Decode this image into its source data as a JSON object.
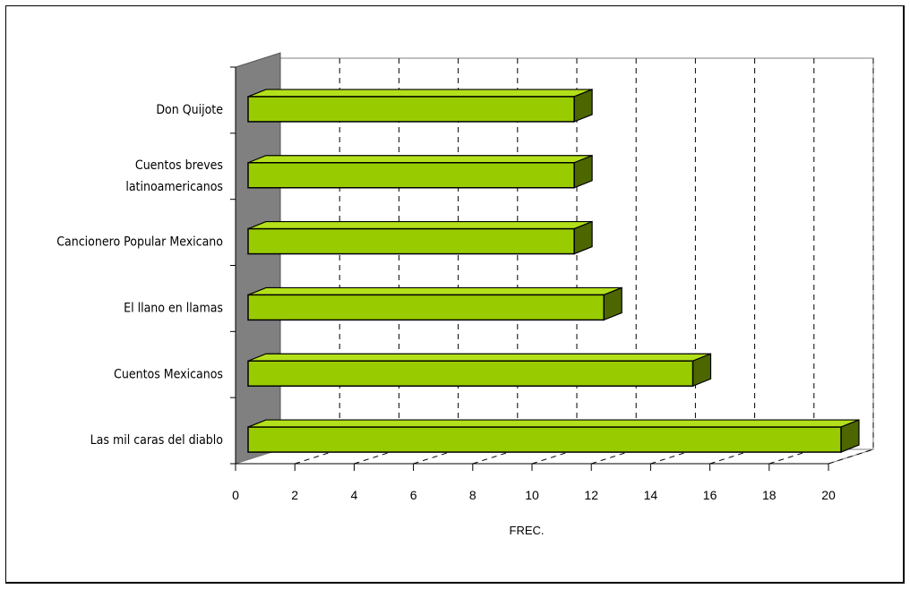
{
  "chart_data": {
    "type": "bar",
    "orientation": "horizontal",
    "style": "3d",
    "categories": [
      "Don Quijote",
      "Cuentos breves latinoamericanos",
      "Cancionero Popular Mexicano",
      "El llano en llamas",
      "Cuentos Mexicanos",
      "Las mil caras del diablo"
    ],
    "category_lines": [
      [
        "Don Quijote"
      ],
      [
        "Cuentos breves",
        "latinoamericanos"
      ],
      [
        "Cancionero Popular Mexicano"
      ],
      [
        "El llano en llamas"
      ],
      [
        "Cuentos Mexicanos"
      ],
      [
        "Las mil caras del diablo"
      ]
    ],
    "values": [
      11,
      11,
      11,
      12,
      15,
      20
    ],
    "xticks": [
      "0",
      "2",
      "4",
      "6",
      "8",
      "10",
      "12",
      "14",
      "16",
      "18",
      "20"
    ],
    "xlabel": "FREC.",
    "xlim": [
      0,
      20
    ],
    "grid": "vertical-dashed",
    "colors": {
      "bar_front": "#99cc00",
      "bar_top": "#b3e01a",
      "bar_side": "#4d6600",
      "wall": "#808080",
      "outline": "#000000"
    }
  }
}
